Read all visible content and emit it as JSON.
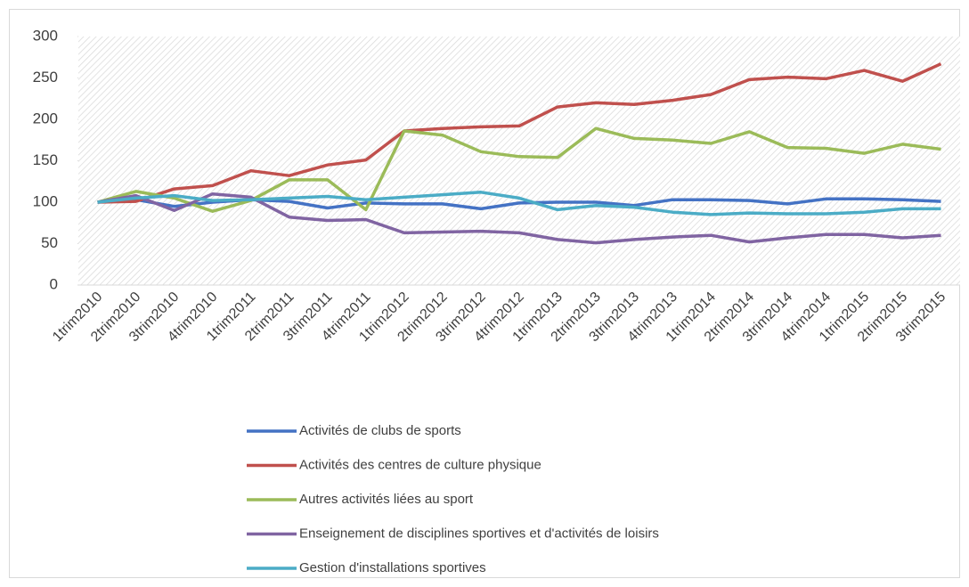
{
  "chart_data": {
    "type": "line",
    "categories": [
      "1trim2010",
      "2trim2010",
      "3trim2010",
      "4trim2010",
      "1trim2011",
      "2trim2011",
      "3trim2011",
      "4trim2011",
      "1trim2012",
      "2trim2012",
      "3trim2012",
      "4trim2012",
      "1trim2013",
      "2trim2013",
      "3trim2013",
      "4trim2013",
      "1trim2014",
      "2trim2014",
      "3trim2014",
      "4trim2014",
      "1trim2015",
      "2trim2015",
      "3trim2015"
    ],
    "series": [
      {
        "name": "Activités de clubs de sports",
        "color": "#4472c4",
        "values": [
          100,
          103,
          95,
          100,
          103,
          101,
          93,
          99,
          98,
          98,
          92,
          99,
          100,
          100,
          96,
          103,
          103,
          102,
          98,
          104,
          104,
          103,
          101
        ]
      },
      {
        "name": "Activités des centres de culture physique",
        "color": "#c0504d",
        "values": [
          100,
          101,
          116,
          120,
          138,
          132,
          145,
          151,
          186,
          189,
          191,
          192,
          215,
          220,
          218,
          223,
          230,
          248,
          251,
          249,
          259,
          246,
          267
        ]
      },
      {
        "name": "Autres activités liées au sport",
        "color": "#9bbb59",
        "values": [
          100,
          113,
          105,
          89,
          102,
          127,
          127,
          91,
          186,
          181,
          161,
          155,
          154,
          189,
          177,
          175,
          171,
          185,
          166,
          165,
          159,
          170,
          164
        ]
      },
      {
        "name": "Enseignement de disciplines sportives et d'activités de loisirs",
        "color": "#8064a2",
        "values": [
          100,
          108,
          90,
          110,
          106,
          82,
          78,
          79,
          63,
          64,
          65,
          63,
          55,
          51,
          55,
          58,
          60,
          52,
          57,
          61,
          61,
          57,
          60
        ]
      },
      {
        "name": "Gestion d'installations sportives",
        "color": "#4bacc6",
        "values": [
          100,
          105,
          108,
          102,
          103,
          105,
          107,
          103,
          106,
          109,
          112,
          105,
          91,
          96,
          94,
          88,
          85,
          87,
          86,
          86,
          88,
          92,
          92
        ]
      }
    ],
    "ylim": [
      0,
      300
    ],
    "yticks": [
      0,
      50,
      100,
      150,
      200,
      250,
      300
    ],
    "legend": "bottom"
  }
}
